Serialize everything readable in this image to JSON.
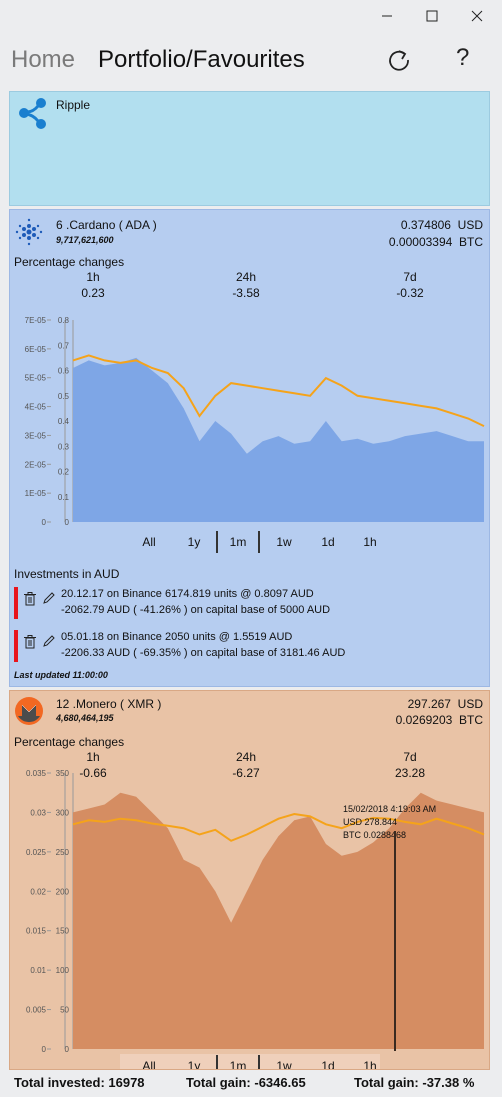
{
  "header": {
    "home_label": "Home",
    "title": "Portfolio/Favourites"
  },
  "ripple": {
    "name": "Ripple"
  },
  "cardano": {
    "name": "6 .Cardano ( ADA )",
    "supply": "9,717,621,600",
    "price_usd": "0.374806",
    "price_usd_unit": "USD",
    "price_btc": "0.00003394",
    "price_btc_unit": "BTC",
    "pct_title": "Percentage changes",
    "pct": [
      {
        "label": "1h",
        "value": "0.23"
      },
      {
        "label": "24h",
        "value": "-3.58"
      },
      {
        "label": "7d",
        "value": "-0.32"
      }
    ],
    "investments_title": "Investments in AUD",
    "investments": [
      {
        "line1": "20.12.17 on Binance 6174.819 units @ 0.8097 AUD",
        "line2": "-2062.79 AUD ( -41.26% ) on capital base of 5000 AUD"
      },
      {
        "line1": "05.01.18 on Binance 2050 units @ 1.5519 AUD",
        "line2": "-2206.33 AUD ( -69.35% ) on capital base of 3181.46 AUD"
      }
    ],
    "last_updated": "Last updated 11:00:00"
  },
  "monero": {
    "name": "12 .Monero ( XMR )",
    "supply": "4,680,464,195",
    "price_usd": "297.267",
    "price_usd_unit": "USD",
    "price_btc": "0.0269203",
    "price_btc_unit": "BTC",
    "pct_title": "Percentage changes",
    "pct": [
      {
        "label": "1h",
        "value": "-0.66"
      },
      {
        "label": "24h",
        "value": "-6.27"
      },
      {
        "label": "7d",
        "value": "23.28"
      }
    ],
    "tooltip": {
      "date": "15/02/2018 4:19:03 AM",
      "usd": "USD 278.844",
      "btc": "BTC 0.0288468"
    }
  },
  "ranges": [
    "All",
    "1y",
    "1m",
    "1w",
    "1d",
    "1h"
  ],
  "footer": {
    "invested": "Total invested: 16978",
    "gain": "Total gain: -6346.65",
    "gain_pct": "Total gain: -37.38 %"
  },
  "colors": {
    "cardano_area": "#7ea6e6",
    "cardano_line": "#f5a31a",
    "monero_area": "#d58d62",
    "monero_line": "#f5a31a"
  },
  "chart_data": [
    {
      "type": "area",
      "name_ref": "cardano",
      "y_left_ticks": [
        "7E-05",
        "6E-05",
        "5E-05",
        "4E-05",
        "3E-05",
        "2E-05",
        "1E-05",
        "0"
      ],
      "y_right_ticks": [
        "0.8",
        "0.7",
        "0.6",
        "0.5",
        "0.4",
        "0.3",
        "0.2",
        "0.1",
        "0"
      ],
      "ylim_usd": [
        0,
        0.8
      ],
      "series": [
        {
          "axis": "btc-area",
          "values": [
            6.1e-05,
            6.4e-05,
            6.2e-05,
            6.3e-05,
            6.5e-05,
            6e-05,
            5.5e-05,
            4.5e-05,
            3.2e-05,
            4e-05,
            3.5e-05,
            2.7e-05,
            3.2e-05,
            3.4e-05,
            3.1e-05,
            3.2e-05,
            4e-05,
            3.2e-05,
            3.3e-05,
            3.1e-05,
            3.2e-05,
            3.4e-05,
            3.5e-05,
            3.6e-05,
            3.4e-05,
            3.2e-05,
            3.2e-05
          ]
        },
        {
          "axis": "usd-line",
          "values": [
            0.64,
            0.66,
            0.64,
            0.63,
            0.64,
            0.61,
            0.59,
            0.53,
            0.42,
            0.5,
            0.55,
            0.54,
            0.53,
            0.52,
            0.51,
            0.5,
            0.57,
            0.54,
            0.5,
            0.49,
            0.48,
            0.47,
            0.46,
            0.45,
            0.43,
            0.41,
            0.38
          ]
        }
      ]
    },
    {
      "type": "area",
      "name_ref": "monero",
      "y_left_ticks": [
        "0.035",
        "0.03",
        "0.025",
        "0.02",
        "0.015",
        "0.01",
        "0.005",
        "0"
      ],
      "y_right_ticks": [
        "350",
        "300",
        "250",
        "200",
        "150",
        "100",
        "50",
        "0"
      ],
      "ylim_usd": [
        0,
        350
      ],
      "series": [
        {
          "axis": "usd-area",
          "values": [
            300,
            305,
            310,
            325,
            320,
            300,
            280,
            240,
            230,
            200,
            160,
            200,
            240,
            270,
            290,
            295,
            260,
            245,
            250,
            262,
            280,
            305,
            325,
            315,
            310,
            305,
            300
          ]
        },
        {
          "axis": "btc-line",
          "values": [
            0.0285,
            0.029,
            0.0288,
            0.0292,
            0.029,
            0.0286,
            0.0283,
            0.028,
            0.0272,
            0.0278,
            0.0264,
            0.0272,
            0.0282,
            0.0292,
            0.0298,
            0.0295,
            0.0285,
            0.028,
            0.0288,
            0.0293,
            0.0292,
            0.0288,
            0.0285,
            0.0292,
            0.0286,
            0.028,
            0.0272
          ]
        }
      ]
    }
  ]
}
